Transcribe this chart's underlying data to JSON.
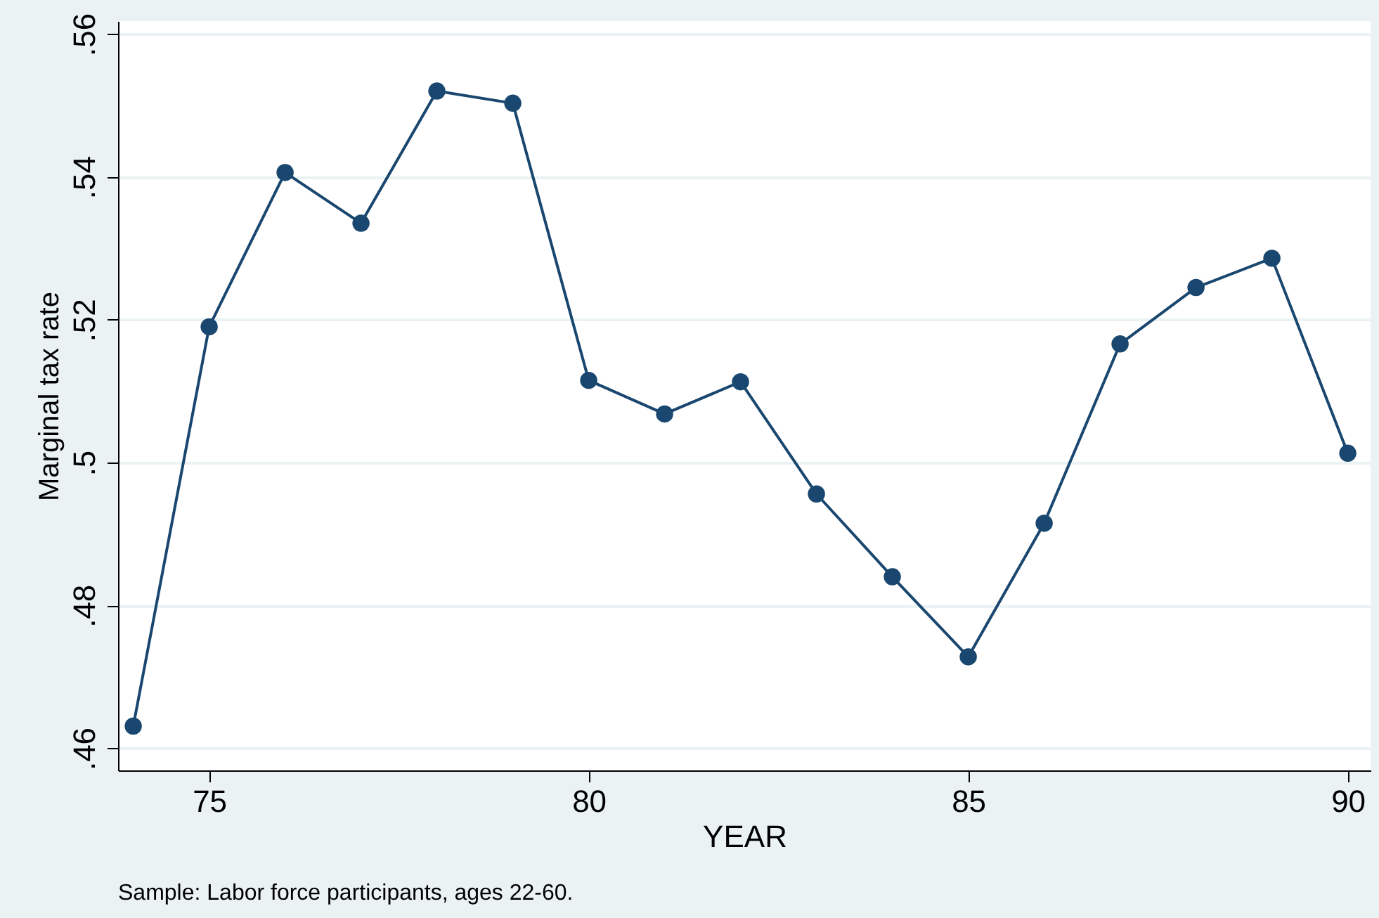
{
  "chart_data": {
    "type": "line",
    "xlabel": "YEAR",
    "ylabel": "Marginal tax rate",
    "x": [
      74,
      75,
      76,
      77,
      78,
      79,
      80,
      81,
      82,
      83,
      84,
      85,
      86,
      87,
      88,
      89,
      90
    ],
    "series": [
      {
        "color": "#1a476f",
        "values": [
          0.4631,
          0.519,
          0.5406,
          0.5335,
          0.552,
          0.5503,
          0.5115,
          0.5068,
          0.5113,
          0.4956,
          0.484,
          0.4728,
          0.4915,
          0.5166,
          0.5245,
          0.5286,
          0.5013
        ]
      }
    ],
    "xlim": [
      73.8,
      90.3
    ],
    "xticks": [
      75,
      80,
      85,
      90
    ],
    "ylim": [
      0.4569,
      0.5618
    ],
    "yticks": [
      {
        "value": 0.46,
        "label": ".46"
      },
      {
        "value": 0.48,
        "label": ".48"
      },
      {
        "value": 0.5,
        "label": ".5"
      },
      {
        "value": 0.52,
        "label": ".52"
      },
      {
        "value": 0.54,
        "label": ".54"
      },
      {
        "value": 0.56,
        "label": ".56"
      }
    ],
    "grid": "y",
    "marker": "circle",
    "line_style": "solid",
    "annotations": [
      "Sample: Labor force participants, ages 22-60."
    ]
  }
}
